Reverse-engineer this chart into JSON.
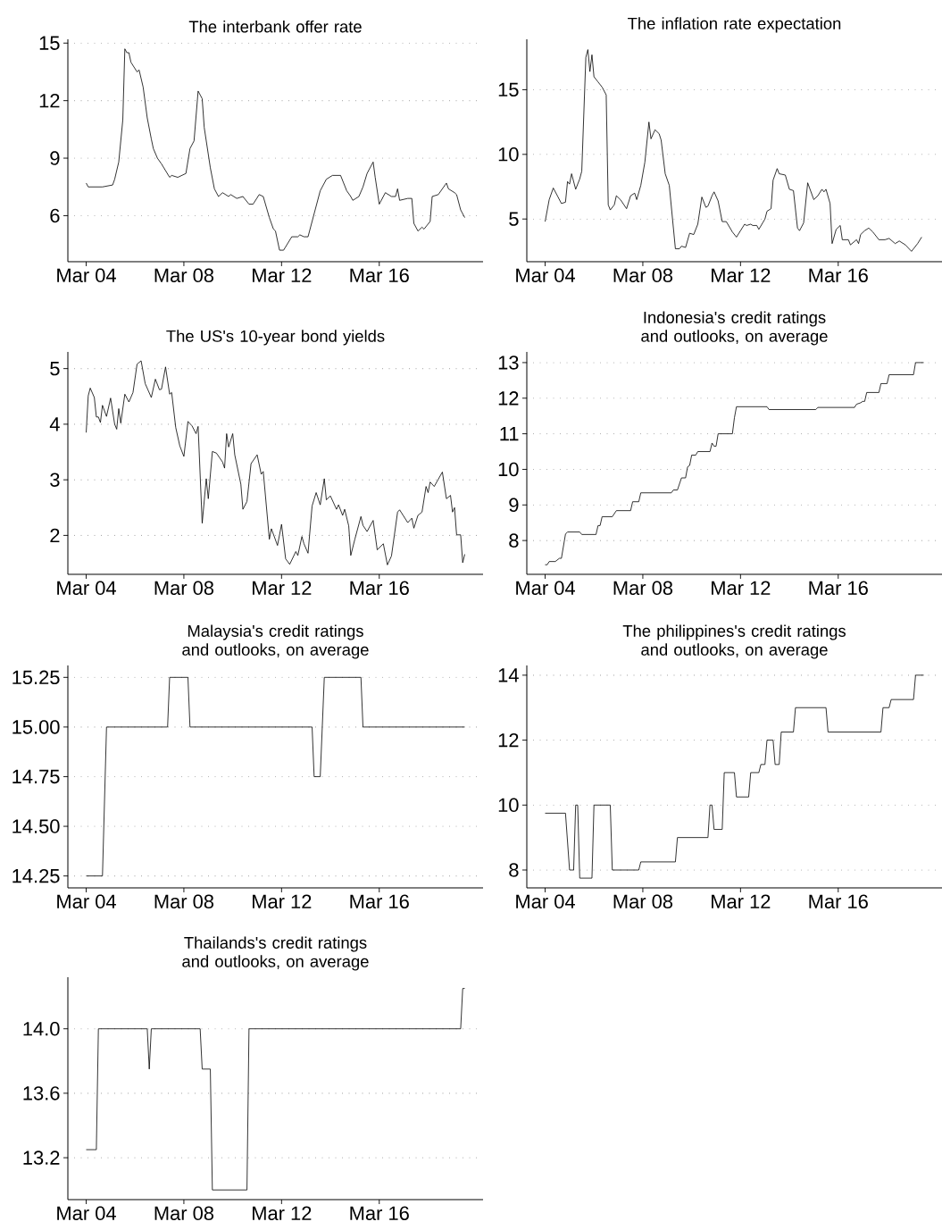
{
  "chart_data": [
    {
      "type": "line",
      "title": "The interbank offer rate",
      "color": "#000000",
      "grid": "y",
      "xlim": [
        "2003-06",
        "2020-06"
      ],
      "ylim": [
        3.6,
        15.2
      ],
      "xticks": [
        {
          "value": "2004-03",
          "label": "Mar 04"
        },
        {
          "value": "2008-03",
          "label": "Mar 08"
        },
        {
          "value": "2012-03",
          "label": "Mar 12"
        },
        {
          "value": "2016-03",
          "label": "Mar 16"
        }
      ],
      "yticks": [
        6,
        9,
        12,
        15
      ],
      "x": [
        "2004-03",
        "2004-04",
        "2004-11",
        "2005-04",
        "2005-05",
        "2005-07",
        "2005-09",
        "2005-10",
        "2005-11",
        "2005-12",
        "2006-01",
        "2006-04",
        "2006-05",
        "2006-07",
        "2006-09",
        "2006-11",
        "2006-12",
        "2007-02",
        "2007-04",
        "2007-08",
        "2007-09",
        "2007-12",
        "2008-04",
        "2008-06",
        "2008-08",
        "2008-10",
        "2008-12",
        "2009-01",
        "2009-04",
        "2009-06",
        "2009-08",
        "2009-10",
        "2010-01",
        "2010-02",
        "2010-05",
        "2010-08",
        "2010-11",
        "2011-01",
        "2011-04",
        "2011-06",
        "2011-09",
        "2011-11",
        "2011-12",
        "2012-02",
        "2012-04",
        "2012-08",
        "2012-11",
        "2012-12",
        "2013-02",
        "2013-04",
        "2013-08",
        "2013-10",
        "2014-01",
        "2014-04",
        "2014-08",
        "2014-11",
        "2015-01",
        "2015-02",
        "2015-05",
        "2015-07",
        "2015-09",
        "2015-12",
        "2016-01",
        "2016-03",
        "2016-06",
        "2016-09",
        "2016-11",
        "2016-12",
        "2017-01",
        "2017-05",
        "2017-07",
        "2017-08",
        "2017-10",
        "2017-12",
        "2018-01",
        "2018-04",
        "2018-05",
        "2018-08",
        "2018-12",
        "2019-01",
        "2019-04",
        "2019-05",
        "2019-07",
        "2019-09"
      ],
      "values": [
        7.7,
        7.5,
        7.5,
        7.6,
        7.9,
        8.8,
        11.0,
        14.7,
        14.5,
        14.5,
        14.0,
        13.5,
        13.6,
        12.7,
        11.1,
        10.0,
        9.5,
        9.0,
        8.7,
        8.0,
        8.1,
        8.0,
        8.2,
        9.5,
        9.9,
        12.5,
        12.1,
        10.6,
        8.5,
        7.4,
        7.0,
        7.2,
        7.0,
        7.1,
        6.9,
        7.0,
        6.6,
        6.6,
        7.1,
        7.0,
        5.9,
        5.3,
        5.2,
        4.2,
        4.2,
        4.9,
        4.9,
        5.0,
        4.9,
        4.9,
        6.5,
        7.3,
        7.9,
        8.1,
        8.1,
        7.3,
        7.0,
        6.8,
        7.0,
        7.5,
        8.2,
        8.8,
        8.0,
        6.6,
        7.2,
        7.0,
        7.0,
        7.4,
        6.8,
        6.9,
        6.9,
        5.6,
        5.2,
        5.4,
        5.3,
        5.7,
        7.0,
        7.1,
        7.7,
        7.4,
        7.2,
        7.1,
        6.3,
        5.9
      ]
    },
    {
      "type": "line",
      "title": "The inflation rate expectation",
      "color": "#000000",
      "grid": "y",
      "xlim": [
        "2003-06",
        "2020-06"
      ],
      "ylim": [
        1.7,
        18.9
      ],
      "xticks": [
        {
          "value": "2004-03",
          "label": "Mar 04"
        },
        {
          "value": "2008-03",
          "label": "Mar 08"
        },
        {
          "value": "2012-03",
          "label": "Mar 12"
        },
        {
          "value": "2016-03",
          "label": "Mar 16"
        }
      ],
      "yticks": [
        5,
        10,
        15
      ],
      "x": [
        "2004-03",
        "2004-05",
        "2004-07",
        "2004-09",
        "2004-11",
        "2005-01",
        "2005-02",
        "2005-03",
        "2005-04",
        "2005-06",
        "2005-08",
        "2005-09",
        "2005-11",
        "2005-12",
        "2006-01",
        "2006-02",
        "2006-03",
        "2006-05",
        "2006-07",
        "2006-09",
        "2006-10",
        "2006-11",
        "2007-01",
        "2007-02",
        "2007-04",
        "2007-07",
        "2007-09",
        "2007-11",
        "2007-12",
        "2008-02",
        "2008-04",
        "2008-06",
        "2008-07",
        "2008-09",
        "2008-11",
        "2008-12",
        "2009-02",
        "2009-04",
        "2009-07",
        "2009-09",
        "2009-10",
        "2009-12",
        "2010-02",
        "2010-04",
        "2010-06",
        "2010-08",
        "2010-10",
        "2010-11",
        "2011-01",
        "2011-02",
        "2011-04",
        "2011-06",
        "2011-08",
        "2011-11",
        "2012-01",
        "2012-03",
        "2012-05",
        "2012-06",
        "2012-08",
        "2012-09",
        "2012-11",
        "2012-12",
        "2013-03",
        "2013-04",
        "2013-06",
        "2013-07",
        "2013-09",
        "2013-10",
        "2014-01",
        "2014-03",
        "2014-05",
        "2014-07",
        "2014-08",
        "2014-10",
        "2014-12",
        "2015-03",
        "2015-05",
        "2015-07",
        "2015-08",
        "2015-09",
        "2015-11",
        "2015-12",
        "2016-02",
        "2016-04",
        "2016-05",
        "2016-08",
        "2016-09",
        "2016-12",
        "2017-01",
        "2017-02",
        "2017-04",
        "2017-06",
        "2017-08",
        "2017-11",
        "2018-02",
        "2018-04",
        "2018-07",
        "2018-09",
        "2018-12",
        "2019-03",
        "2019-06",
        "2019-08"
      ],
      "values": [
        4.8,
        6.5,
        7.4,
        6.8,
        6.2,
        6.3,
        7.9,
        7.7,
        8.5,
        7.3,
        8.1,
        8.7,
        17.5,
        18.1,
        16.4,
        17.7,
        16.0,
        15.6,
        15.2,
        14.6,
        6.1,
        5.7,
        6.1,
        6.8,
        6.5,
        5.8,
        6.8,
        7.0,
        6.5,
        7.6,
        9.4,
        12.5,
        11.2,
        11.9,
        11.6,
        11.1,
        8.5,
        7.6,
        2.7,
        2.7,
        2.9,
        2.8,
        3.9,
        3.8,
        4.6,
        6.7,
        5.9,
        6.0,
        6.8,
        7.1,
        6.4,
        4.8,
        4.8,
        4.0,
        3.6,
        4.1,
        4.6,
        4.5,
        4.6,
        4.5,
        4.5,
        4.2,
        5.0,
        5.6,
        5.8,
        8.0,
        8.9,
        8.5,
        8.4,
        7.3,
        7.2,
        4.3,
        4.1,
        4.7,
        7.8,
        6.5,
        6.8,
        7.3,
        7.1,
        7.3,
        6.2,
        3.1,
        4.2,
        4.5,
        3.4,
        3.4,
        3.0,
        3.4,
        3.1,
        3.8,
        4.1,
        4.3,
        4.0,
        3.4,
        3.4,
        3.5,
        3.1,
        3.3,
        3.0,
        2.5,
        3.1,
        3.6
      ]
    },
    {
      "type": "line",
      "title": "The US's 10-year bond yields",
      "color": "#000000",
      "grid": "y",
      "xlim": [
        "2003-06",
        "2020-06"
      ],
      "ylim": [
        1.3,
        5.3
      ],
      "xticks": [
        {
          "value": "2004-03",
          "label": "Mar 04"
        },
        {
          "value": "2008-03",
          "label": "Mar 08"
        },
        {
          "value": "2012-03",
          "label": "Mar 12"
        },
        {
          "value": "2016-03",
          "label": "Mar 16"
        }
      ],
      "yticks": [
        2,
        3,
        4,
        5
      ],
      "x": [
        "2004-03",
        "2004-04",
        "2004-05",
        "2004-07",
        "2004-08",
        "2004-09",
        "2004-10",
        "2004-11",
        "2005-01",
        "2005-03",
        "2005-05",
        "2005-06",
        "2005-07",
        "2005-08",
        "2005-10",
        "2005-12",
        "2006-02",
        "2006-04",
        "2006-06",
        "2006-08",
        "2006-11",
        "2007-01",
        "2007-03",
        "2007-04",
        "2007-06",
        "2007-08",
        "2007-09",
        "2007-11",
        "2008-01",
        "2008-03",
        "2008-05",
        "2008-07",
        "2008-09",
        "2008-10",
        "2008-12",
        "2009-02",
        "2009-03",
        "2009-05",
        "2009-07",
        "2009-10",
        "2009-11",
        "2009-12",
        "2010-01",
        "2010-03",
        "2010-04",
        "2010-07",
        "2010-08",
        "2010-10",
        "2010-12",
        "2011-03",
        "2011-05",
        "2011-06",
        "2011-09",
        "2011-10",
        "2012-01",
        "2012-03",
        "2012-05",
        "2012-07",
        "2012-10",
        "2012-11",
        "2013-01",
        "2013-02",
        "2013-04",
        "2013-06",
        "2013-08",
        "2013-10",
        "2013-12",
        "2014-01",
        "2014-03",
        "2014-06",
        "2014-07",
        "2014-09",
        "2014-10",
        "2014-12",
        "2015-01",
        "2015-03",
        "2015-06",
        "2015-07",
        "2015-09",
        "2015-12",
        "2016-02",
        "2016-05",
        "2016-07",
        "2016-09",
        "2016-12",
        "2017-01",
        "2017-05",
        "2017-07",
        "2017-08",
        "2017-10",
        "2017-12",
        "2018-02",
        "2018-03",
        "2018-04",
        "2018-06",
        "2018-10",
        "2018-12",
        "2019-02",
        "2019-03",
        "2019-04",
        "2019-05",
        "2019-07",
        "2019-08",
        "2019-09"
      ],
      "values": [
        3.85,
        4.51,
        4.65,
        4.48,
        4.13,
        4.13,
        4.03,
        4.34,
        4.14,
        4.47,
        4.0,
        3.91,
        4.28,
        4.02,
        4.54,
        4.4,
        4.57,
        5.08,
        5.14,
        4.73,
        4.48,
        4.81,
        4.62,
        4.63,
        5.03,
        4.54,
        4.57,
        3.94,
        3.61,
        3.42,
        4.05,
        3.97,
        3.83,
        3.96,
        2.22,
        3.02,
        2.66,
        3.51,
        3.48,
        3.32,
        3.21,
        3.83,
        3.59,
        3.83,
        3.45,
        2.92,
        2.47,
        2.61,
        3.29,
        3.45,
        3.1,
        3.15,
        1.93,
        2.12,
        1.82,
        2.2,
        1.58,
        1.48,
        1.71,
        1.64,
        1.98,
        1.85,
        1.68,
        2.53,
        2.77,
        2.55,
        3.02,
        2.64,
        2.71,
        2.47,
        2.55,
        2.36,
        2.47,
        2.17,
        1.64,
        1.93,
        2.34,
        2.18,
        2.07,
        2.27,
        1.74,
        1.85,
        1.47,
        1.63,
        2.42,
        2.46,
        2.23,
        2.31,
        2.13,
        2.36,
        2.42,
        2.88,
        2.77,
        2.96,
        2.88,
        3.14,
        2.66,
        2.72,
        2.42,
        2.5,
        2.01,
        2.01,
        1.51,
        1.66
      ]
    },
    {
      "type": "line",
      "title": "Indonesia's credit ratings and outlooks, on average",
      "color": "#000000",
      "grid": "y",
      "xlim": [
        "2003-06",
        "2020-06"
      ],
      "ylim": [
        7.05,
        13.3
      ],
      "xticks": [
        {
          "value": "2004-03",
          "label": "Mar 04"
        },
        {
          "value": "2008-03",
          "label": "Mar 08"
        },
        {
          "value": "2012-03",
          "label": "Mar 12"
        },
        {
          "value": "2016-03",
          "label": "Mar 16"
        }
      ],
      "yticks": [
        8,
        9,
        10,
        11,
        12,
        13
      ],
      "x": [
        "2004-03",
        "2004-04",
        "2004-05",
        "2004-08",
        "2004-10",
        "2004-11",
        "2005-01",
        "2005-02",
        "2005-08",
        "2005-09",
        "2006-04",
        "2006-05",
        "2006-06",
        "2006-07",
        "2006-12",
        "2007-02",
        "2007-09",
        "2007-10",
        "2008-01",
        "2008-02",
        "2009-05",
        "2009-06",
        "2009-08",
        "2009-10",
        "2009-12",
        "2010-01",
        "2010-02",
        "2010-03",
        "2010-05",
        "2010-06",
        "2010-12",
        "2011-01",
        "2011-02",
        "2011-03",
        "2011-04",
        "2011-11",
        "2011-12",
        "2012-01",
        "2013-04",
        "2013-05",
        "2015-04",
        "2015-05",
        "2016-11",
        "2016-12",
        "2017-02",
        "2017-03",
        "2017-04",
        "2017-05",
        "2017-11",
        "2017-12",
        "2018-03",
        "2018-04",
        "2019-04",
        "2019-05",
        "2019-09"
      ],
      "values": [
        7.32,
        7.32,
        7.41,
        7.41,
        7.5,
        7.5,
        8.18,
        8.24,
        8.24,
        8.17,
        8.17,
        8.42,
        8.42,
        8.67,
        8.67,
        8.84,
        8.84,
        9.09,
        9.09,
        9.34,
        9.34,
        9.42,
        9.42,
        9.76,
        9.76,
        10.07,
        10.11,
        10.4,
        10.4,
        10.5,
        10.5,
        10.74,
        10.65,
        10.65,
        11.0,
        11.0,
        11.45,
        11.76,
        11.76,
        11.68,
        11.68,
        11.74,
        11.74,
        11.83,
        11.87,
        11.91,
        11.91,
        12.16,
        12.16,
        12.41,
        12.41,
        12.66,
        12.66,
        13.0,
        13.0
      ]
    },
    {
      "type": "line",
      "title": "Malaysia's credit ratings and outlooks, on average",
      "color": "#000000",
      "grid": "y",
      "xlim": [
        "2003-06",
        "2020-06"
      ],
      "ylim": [
        14.19,
        15.31
      ],
      "xticks": [
        {
          "value": "2004-03",
          "label": "Mar 04"
        },
        {
          "value": "2008-03",
          "label": "Mar 08"
        },
        {
          "value": "2012-03",
          "label": "Mar 12"
        },
        {
          "value": "2016-03",
          "label": "Mar 16"
        }
      ],
      "yticks": [
        14.25,
        {
          "value": 14.5,
          "label": "14.50"
        },
        14.75,
        {
          "value": 15,
          "label": "15.00"
        },
        15.25
      ],
      "x": [
        "2004-03",
        "2004-11",
        "2005-01",
        "2007-07",
        "2007-08",
        "2008-05",
        "2008-06",
        "2013-06",
        "2013-07",
        "2013-10",
        "2013-12",
        "2015-06",
        "2015-07",
        "2019-09"
      ],
      "values": [
        14.25,
        14.25,
        15.0,
        15.0,
        15.25,
        15.25,
        15.0,
        15.0,
        14.75,
        14.75,
        15.25,
        15.25,
        15.0,
        15.0
      ]
    },
    {
      "type": "line",
      "title": "The philippines's credit ratings and outlooks, on average",
      "color": "#000000",
      "grid": "y",
      "xlim": [
        "2003-06",
        "2020-06"
      ],
      "ylim": [
        7.45,
        14.3
      ],
      "xticks": [
        {
          "value": "2004-03",
          "label": "Mar 04"
        },
        {
          "value": "2008-03",
          "label": "Mar 08"
        },
        {
          "value": "2012-03",
          "label": "Mar 12"
        },
        {
          "value": "2016-03",
          "label": "Mar 16"
        }
      ],
      "yticks": [
        8,
        10,
        12,
        14
      ],
      "x": [
        "2004-03",
        "2005-01",
        "2005-03",
        "2005-05",
        "2005-06",
        "2005-07",
        "2005-08",
        "2006-02",
        "2006-03",
        "2006-11",
        "2006-12",
        "2008-01",
        "2008-02",
        "2009-07",
        "2009-08",
        "2010-11",
        "2010-12",
        "2011-01",
        "2011-02",
        "2011-06",
        "2011-07",
        "2011-12",
        "2012-01",
        "2012-07",
        "2012-08",
        "2012-12",
        "2013-01",
        "2013-03",
        "2013-04",
        "2013-07",
        "2013-08",
        "2013-10",
        "2013-11",
        "2014-05",
        "2014-06",
        "2015-09",
        "2015-10",
        "2017-12",
        "2018-01",
        "2018-04",
        "2018-05",
        "2019-04",
        "2019-05",
        "2019-09"
      ],
      "values": [
        9.75,
        9.75,
        8.0,
        8.0,
        10.0,
        10.0,
        7.75,
        7.75,
        10.0,
        10.0,
        8.0,
        8.0,
        8.25,
        8.25,
        9.0,
        9.0,
        10.0,
        10.0,
        9.25,
        9.25,
        11.0,
        11.0,
        10.25,
        10.25,
        11.0,
        11.0,
        11.25,
        11.25,
        12.0,
        12.0,
        11.25,
        11.25,
        12.25,
        12.25,
        13.0,
        13.0,
        12.25,
        12.25,
        13.0,
        13.0,
        13.25,
        13.25,
        14.0,
        14.0
      ]
    },
    {
      "type": "line",
      "title": "Thailands's credit ratings and outlooks, on average",
      "color": "#000000",
      "grid": "y",
      "xlim": [
        "2003-06",
        "2020-06"
      ],
      "ylim": [
        12.94,
        14.32
      ],
      "xticks": [
        {
          "value": "2004-03",
          "label": "Mar 04"
        },
        {
          "value": "2008-03",
          "label": "Mar 08"
        },
        {
          "value": "2012-03",
          "label": "Mar 12"
        },
        {
          "value": "2016-03",
          "label": "Mar 16"
        }
      ],
      "yticks": [
        13.2,
        13.6,
        {
          "value": 14,
          "label": "14.0"
        }
      ],
      "x": [
        "2004-03",
        "2004-08",
        "2004-09",
        "2006-09",
        "2006-10",
        "2006-11",
        "2008-11",
        "2008-12",
        "2009-04",
        "2009-05",
        "2010-10",
        "2010-11",
        "2019-07",
        "2019-08",
        "2019-09"
      ],
      "values": [
        13.25,
        13.25,
        14.0,
        14.0,
        13.75,
        14.0,
        14.0,
        13.75,
        13.75,
        13.0,
        13.0,
        14.0,
        14.0,
        14.25,
        14.25
      ]
    }
  ]
}
